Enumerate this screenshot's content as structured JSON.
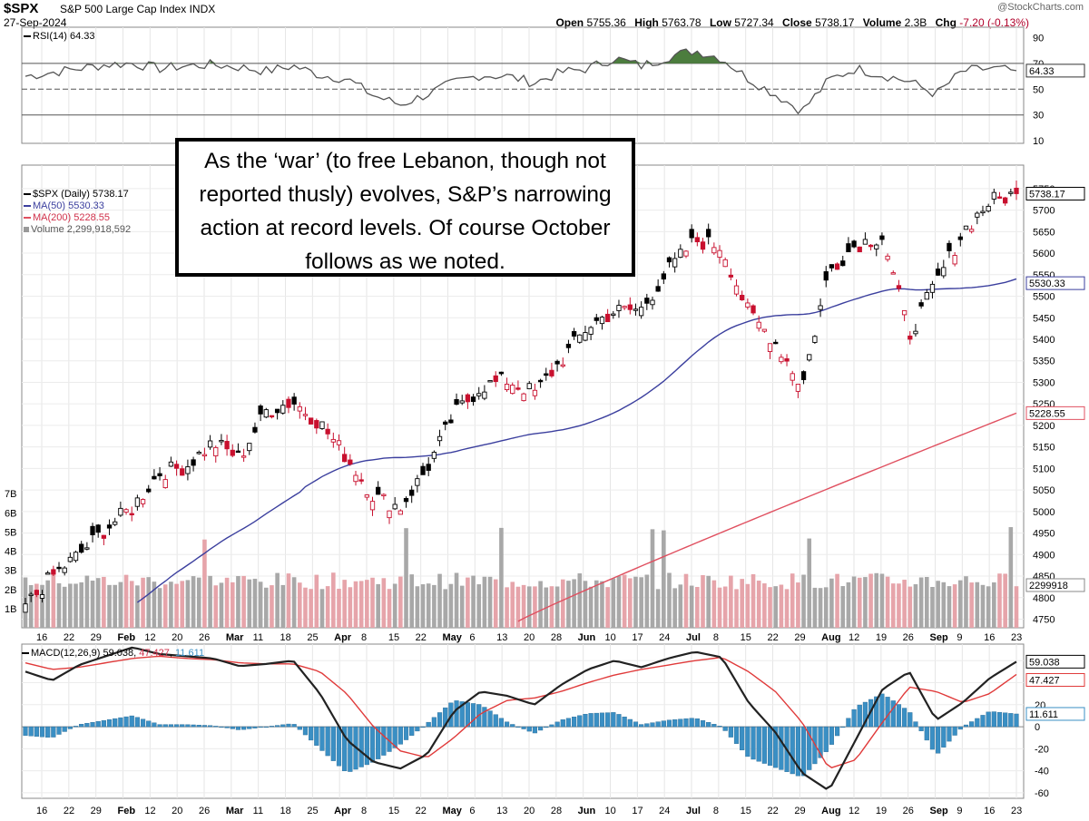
{
  "header": {
    "symbol": "$SPX",
    "name": "S&P 500 Large Cap Index",
    "exchange": "INDX",
    "date": "27-Sep-2024",
    "credit": "@StockCharts.com",
    "open_label": "Open",
    "open": "5755.36",
    "high_label": "High",
    "high": "5763.78",
    "low_label": "Low",
    "low": "5727.34",
    "close_label": "Close",
    "close": "5738.17",
    "volume_label": "Volume",
    "volume": "2.3B",
    "chg_label": "Chg",
    "chg": "-7.20 (-0.13%)"
  },
  "rsi": {
    "legend": "RSI(14) 64.33",
    "value_badge": "64.33"
  },
  "price_legend": {
    "spx": "$SPX (Daily) 5738.17",
    "ma50": "MA(50) 5530.33",
    "ma200": "MA(200) 5228.55",
    "volume": "Volume 2,299,918,592"
  },
  "badges": {
    "close": "5738.17",
    "ma50": "5530.33",
    "ma200": "5228.55",
    "volume": "2299918"
  },
  "macd": {
    "legend_prefix": "MACD(12,26,9)",
    "macd_value": "59.038",
    "signal_value": "47.427",
    "hist_value": "11.611"
  },
  "annotation": "As the ‘war’ (to free Lebanon, though not reported thusly) evolves, S&P’s narrowing action at record levels. Of course October follows as we noted.",
  "colors": {
    "up": "#000000",
    "down": "#c8102e",
    "ma50": "#3b3f9e",
    "ma200": "#e05060",
    "vol_up": "#a8a8a8",
    "vol_down": "#e6a4aa",
    "hist": "#3a8fc4",
    "rsi_fill": "#4c7d3e"
  },
  "chart_data": [
    {
      "type": "line",
      "panel": "RSI",
      "name": "RSI(14)",
      "y_ticks": [
        10,
        30,
        50,
        70,
        90
      ],
      "ylim": [
        8,
        98
      ],
      "reference_lines": [
        30,
        50,
        70
      ],
      "x": [
        "Jan 16",
        "Jan 22",
        "Jan 29",
        "Feb 5",
        "Feb 12",
        "Feb 20",
        "Feb 26",
        "Mar 4",
        "Mar 11",
        "Mar 18",
        "Mar 25",
        "Apr 1",
        "Apr 8",
        "Apr 15",
        "Apr 22",
        "Apr 29",
        "May 6",
        "May 13",
        "May 20",
        "May 28",
        "Jun 3",
        "Jun 10",
        "Jun 17",
        "Jun 24",
        "Jul 1",
        "Jul 8",
        "Jul 15",
        "Jul 22",
        "Jul 29",
        "Aug 5",
        "Aug 12",
        "Aug 19",
        "Aug 26",
        "Sep 3",
        "Sep 9",
        "Sep 16",
        "Sep 23",
        "Sep 27"
      ],
      "values": [
        60,
        63,
        66,
        69,
        70,
        66,
        68,
        69,
        67,
        64,
        68,
        61,
        58,
        45,
        38,
        46,
        55,
        61,
        60,
        55,
        63,
        66,
        74,
        68,
        75,
        80,
        74,
        58,
        46,
        33,
        57,
        66,
        61,
        56,
        46,
        64,
        66,
        64.33
      ]
    },
    {
      "type": "candlestick",
      "panel": "Price",
      "name": "$SPX (Daily)",
      "y_ticks": [
        4750,
        4800,
        4850,
        4900,
        4950,
        5000,
        5050,
        5100,
        5150,
        5200,
        5250,
        5300,
        5350,
        5400,
        5450,
        5500,
        5550,
        5600,
        5650,
        5700,
        5750
      ],
      "ylim": [
        4730,
        5775
      ],
      "x_ticks": [
        "16",
        "22",
        "29",
        "Feb",
        "12",
        "20",
        "26",
        "Mar",
        "11",
        "18",
        "25",
        "Apr",
        "8",
        "15",
        "22",
        "May",
        "6",
        "13",
        "20",
        "28",
        "Jun",
        "10",
        "17",
        "24",
        "Jul",
        "8",
        "15",
        "22",
        "29",
        "Aug",
        "12",
        "19",
        "26",
        "Sep",
        "9",
        "16",
        "23"
      ],
      "weekly_close": {
        "x": [
          "Jan 16",
          "Jan 22",
          "Jan 29",
          "Feb 5",
          "Feb 12",
          "Feb 20",
          "Feb 26",
          "Mar 4",
          "Mar 11",
          "Mar 18",
          "Mar 25",
          "Apr 1",
          "Apr 8",
          "Apr 15",
          "Apr 22",
          "Apr 29",
          "May 6",
          "May 13",
          "May 20",
          "May 28",
          "Jun 3",
          "Jun 10",
          "Jun 17",
          "Jun 24",
          "Jul 1",
          "Jul 8",
          "Jul 15",
          "Jul 22",
          "Jul 29",
          "Aug 5",
          "Aug 12",
          "Aug 19",
          "Aug 26",
          "Sep 3",
          "Sep 9",
          "Sep 16",
          "Sep 23",
          "Sep 27"
        ],
        "values": [
          4780,
          4850,
          4900,
          4960,
          5010,
          5090,
          5105,
          5160,
          5125,
          5235,
          5255,
          5205,
          5125,
          5035,
          5010,
          5100,
          5225,
          5290,
          5305,
          5275,
          5350,
          5430,
          5465,
          5470,
          5560,
          5630,
          5615,
          5460,
          5395,
          5290,
          5560,
          5620,
          5640,
          5410,
          5530,
          5650,
          5720,
          5738.17
        ]
      },
      "ma50": {
        "name": "MA(50)",
        "last": 5530.33
      },
      "ma200": {
        "name": "MA(200)",
        "last": 5228.55
      },
      "volume": {
        "name": "Volume",
        "last": 2299918592,
        "y_ticks": [
          "1B",
          "2B",
          "3B",
          "4B",
          "5B",
          "6B",
          "7B"
        ]
      }
    },
    {
      "type": "line",
      "panel": "MACD",
      "name": "MACD(12,26,9)",
      "y_ticks": [
        -60,
        -40,
        -20,
        0,
        20,
        40,
        60
      ],
      "ylim": [
        -65,
        75
      ],
      "series": [
        {
          "name": "MACD",
          "last": 59.038
        },
        {
          "name": "Signal",
          "last": 47.427
        },
        {
          "name": "Histogram",
          "last": 11.611
        }
      ],
      "x": [
        "Jan 16",
        "Jan 22",
        "Jan 29",
        "Feb 5",
        "Feb 12",
        "Feb 20",
        "Feb 26",
        "Mar 4",
        "Mar 11",
        "Mar 18",
        "Mar 25",
        "Apr 1",
        "Apr 8",
        "Apr 15",
        "Apr 22",
        "Apr 29",
        "May 6",
        "May 13",
        "May 20",
        "May 28",
        "Jun 3",
        "Jun 10",
        "Jun 17",
        "Jun 24",
        "Jul 1",
        "Jul 8",
        "Jul 15",
        "Jul 22",
        "Jul 29",
        "Aug 5",
        "Aug 12",
        "Aug 19",
        "Aug 26",
        "Sep 3",
        "Sep 9",
        "Sep 16",
        "Sep 23",
        "Sep 27"
      ],
      "macd": [
        50,
        42,
        56,
        64,
        72,
        66,
        64,
        62,
        55,
        57,
        60,
        30,
        -12,
        -32,
        -38,
        -25,
        14,
        32,
        28,
        20,
        38,
        52,
        60,
        54,
        62,
        68,
        63,
        22,
        -5,
        -42,
        -58,
        -12,
        34,
        50,
        6,
        22,
        44,
        59.038
      ],
      "signal": [
        58,
        52,
        54,
        58,
        62,
        64,
        62,
        61,
        58,
        57,
        57,
        50,
        30,
        0,
        -22,
        -28,
        -10,
        12,
        24,
        26,
        32,
        40,
        47,
        52,
        56,
        60,
        63,
        50,
        32,
        4,
        -38,
        -30,
        4,
        36,
        32,
        22,
        30,
        47.427
      ]
    }
  ]
}
